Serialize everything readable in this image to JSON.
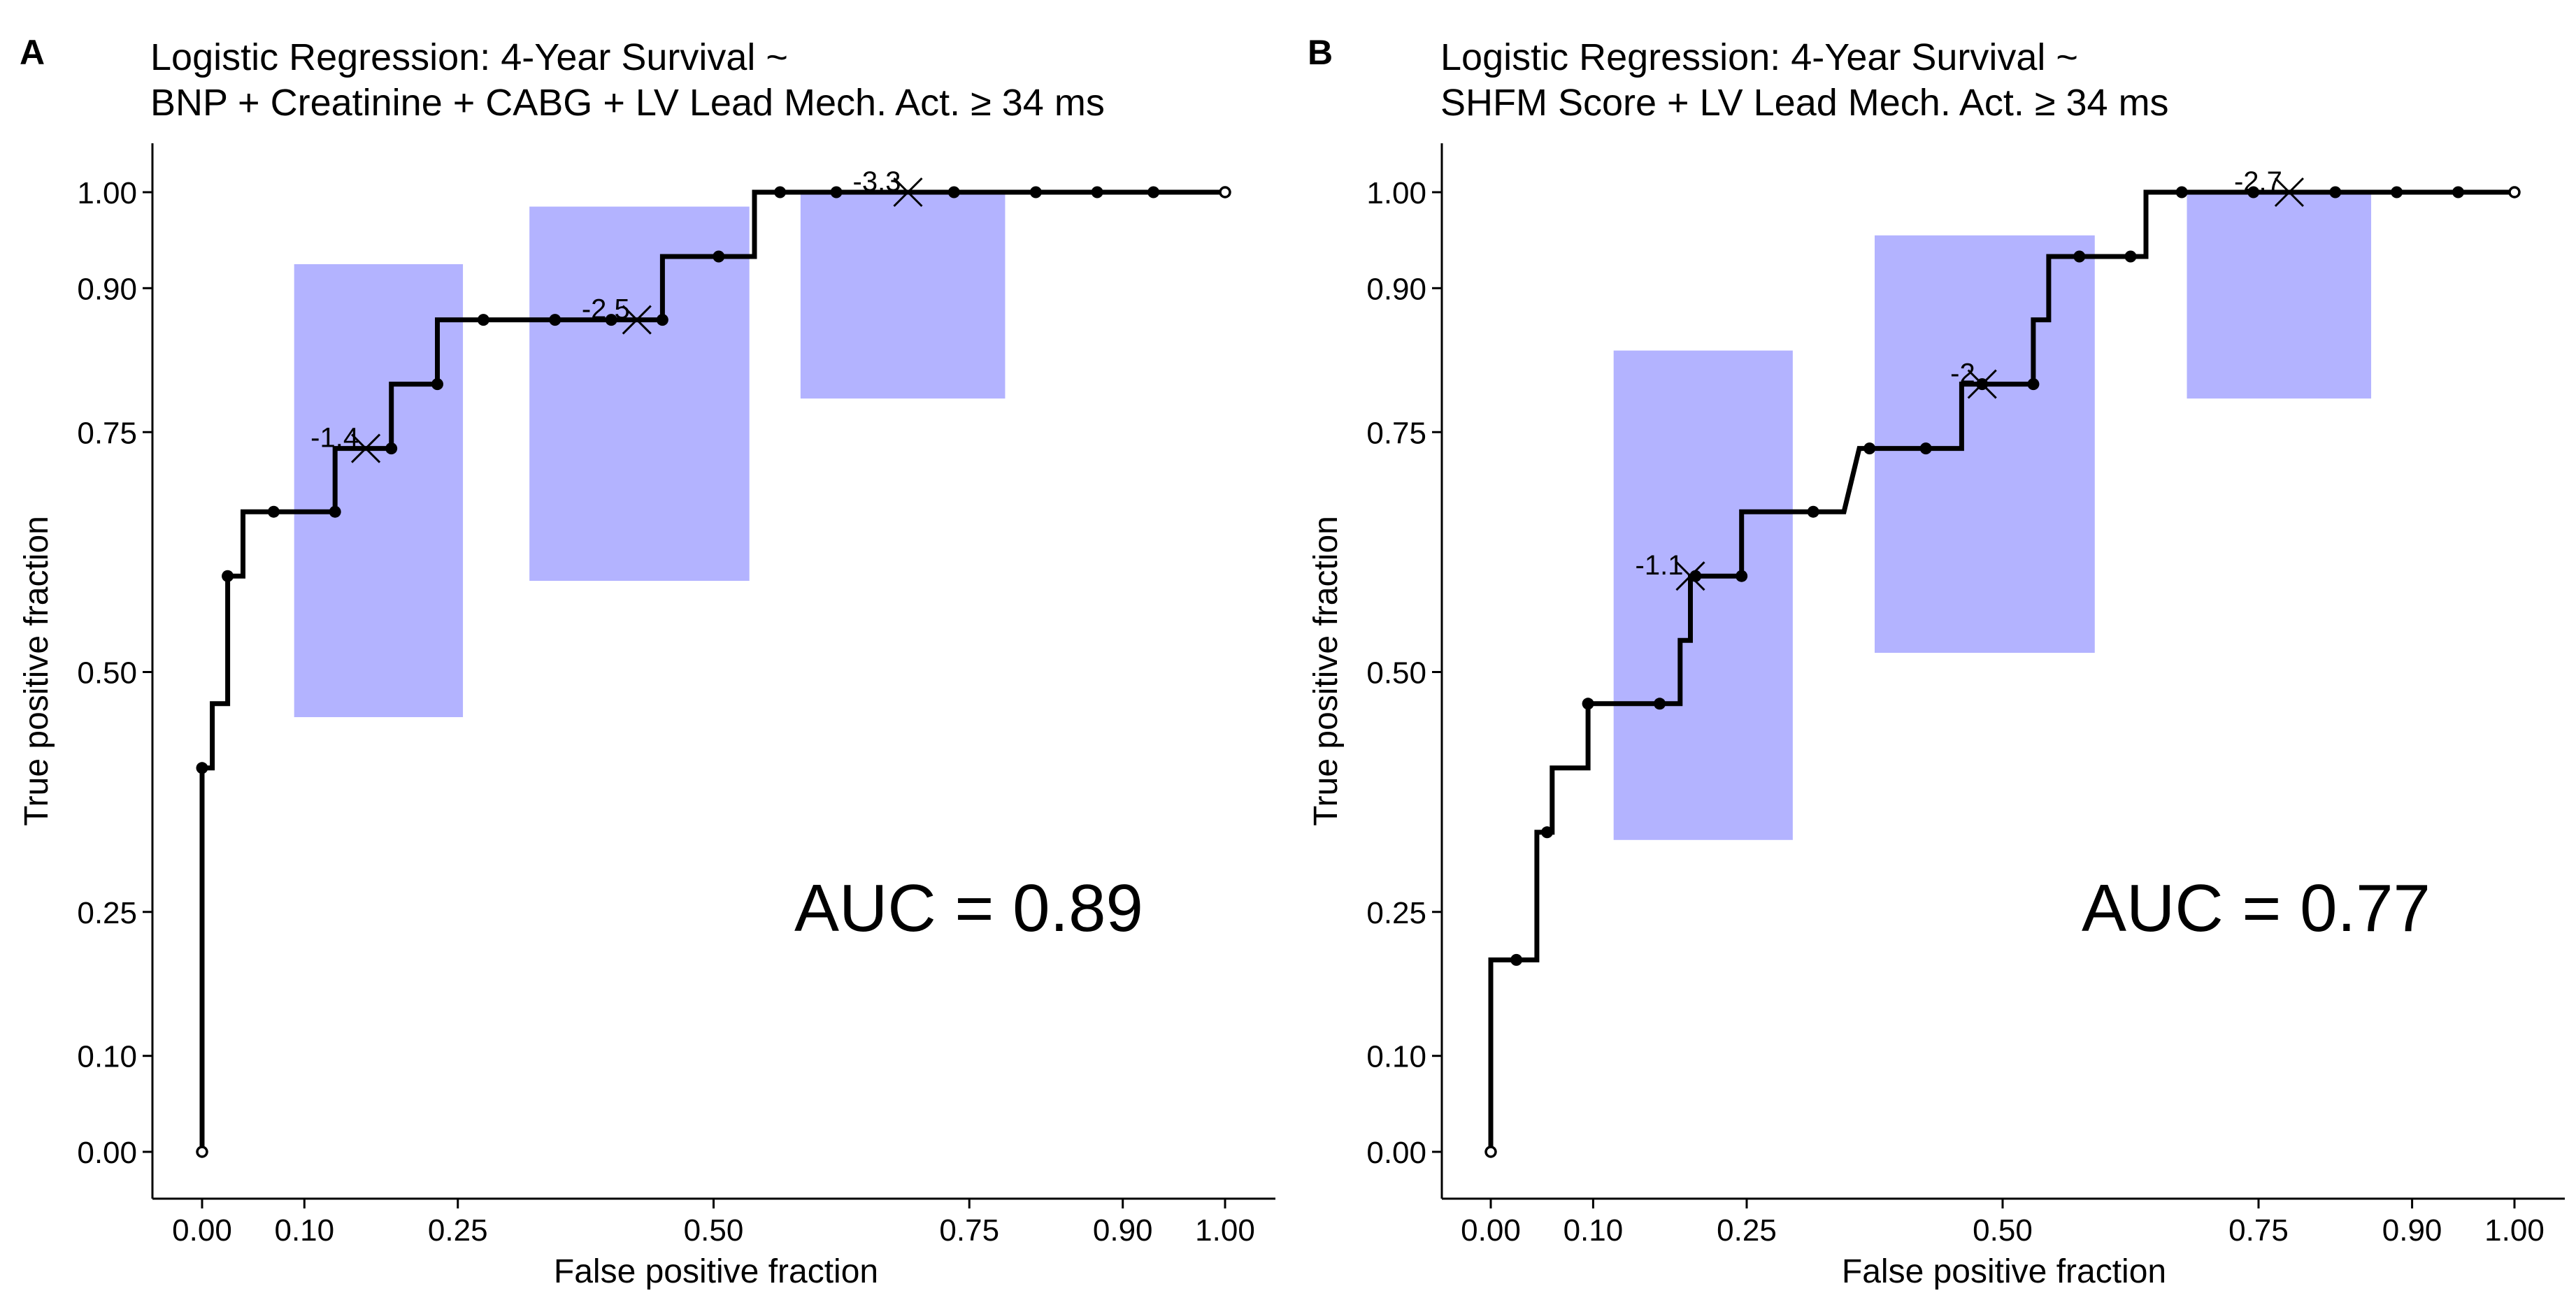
{
  "chart_data": [
    {
      "panel_label": "A",
      "type": "line",
      "title_line1": "Logistic Regression: 4-Year Survival ~",
      "title_line2": "BNP + Creatinine + CABG + LV Lead Mech. Act. ≥ 34 ms",
      "xlabel": "False positive fraction",
      "ylabel": "True positive fraction",
      "xlim": [
        0,
        1
      ],
      "ylim": [
        0,
        1
      ],
      "x_ticks": [
        0.0,
        0.1,
        0.25,
        0.5,
        0.75,
        0.9,
        1.0
      ],
      "x_tick_labels": [
        "0.00",
        "0.10",
        "0.25",
        "0.50",
        "0.75",
        "0.90",
        "1.00"
      ],
      "y_ticks": [
        0.0,
        0.1,
        0.25,
        0.5,
        0.75,
        0.9,
        1.0
      ],
      "y_tick_labels": [
        "0.00",
        "0.10",
        "0.25",
        "0.50",
        "0.75",
        "0.90",
        "1.00"
      ],
      "auc_text": "AUC = 0.89",
      "roc_step_path": [
        [
          0,
          0
        ],
        [
          0,
          0.4
        ],
        [
          0.01,
          0.4
        ],
        [
          0.01,
          0.467
        ],
        [
          0.025,
          0.467
        ],
        [
          0.025,
          0.6
        ],
        [
          0.04,
          0.6
        ],
        [
          0.04,
          0.667
        ],
        [
          0.13,
          0.667
        ],
        [
          0.13,
          0.733
        ],
        [
          0.185,
          0.733
        ],
        [
          0.185,
          0.8
        ],
        [
          0.23,
          0.8
        ],
        [
          0.23,
          0.867
        ],
        [
          0.45,
          0.867
        ],
        [
          0.45,
          0.933
        ],
        [
          0.54,
          0.933
        ],
        [
          0.54,
          1.0
        ],
        [
          1.0,
          1.0
        ]
      ],
      "points": [
        [
          0,
          0.4
        ],
        [
          0.025,
          0.6
        ],
        [
          0.07,
          0.667
        ],
        [
          0.13,
          0.667
        ],
        [
          0.185,
          0.733
        ],
        [
          0.23,
          0.8
        ],
        [
          0.275,
          0.867
        ],
        [
          0.345,
          0.867
        ],
        [
          0.4,
          0.867
        ],
        [
          0.45,
          0.867
        ],
        [
          0.505,
          0.933
        ],
        [
          0.565,
          1.0
        ],
        [
          0.62,
          1.0
        ],
        [
          0.735,
          1.0
        ],
        [
          0.815,
          1.0
        ],
        [
          0.875,
          1.0
        ],
        [
          0.93,
          1.0
        ]
      ],
      "endpoints": [
        [
          0,
          0
        ],
        [
          1,
          1
        ]
      ],
      "cutoffs": [
        {
          "label": "-1.4",
          "x": 0.16,
          "y": 0.733
        },
        {
          "label": "-2.5",
          "x": 0.425,
          "y": 0.867
        },
        {
          "label": "-3.3",
          "x": 0.69,
          "y": 1.0
        }
      ],
      "ci_boxes": [
        {
          "x": [
            0.09,
            0.255
          ],
          "y": [
            0.453,
            0.925
          ]
        },
        {
          "x": [
            0.32,
            0.535
          ],
          "y": [
            0.595,
            0.985
          ]
        },
        {
          "x": [
            0.585,
            0.785
          ],
          "y": [
            0.785,
            1.0
          ]
        }
      ],
      "box_color": "#b3b3ff"
    },
    {
      "panel_label": "B",
      "type": "line",
      "title_line1": "Logistic Regression: 4-Year Survival ~",
      "title_line2": "SHFM Score + LV Lead Mech. Act. ≥ 34 ms",
      "xlabel": "False positive fraction",
      "ylabel": "True positive fraction",
      "xlim": [
        0,
        1
      ],
      "ylim": [
        0,
        1
      ],
      "x_ticks": [
        0.0,
        0.1,
        0.25,
        0.5,
        0.75,
        0.9,
        1.0
      ],
      "x_tick_labels": [
        "0.00",
        "0.10",
        "0.25",
        "0.50",
        "0.75",
        "0.90",
        "1.00"
      ],
      "y_ticks": [
        0.0,
        0.1,
        0.25,
        0.5,
        0.75,
        0.9,
        1.0
      ],
      "y_tick_labels": [
        "0.00",
        "0.10",
        "0.25",
        "0.50",
        "0.75",
        "0.90",
        "1.00"
      ],
      "auc_text": "AUC = 0.77",
      "roc_step_path": [
        [
          0,
          0
        ],
        [
          0,
          0.2
        ],
        [
          0.025,
          0.2
        ],
        [
          0.045,
          0.2
        ],
        [
          0.045,
          0.333
        ],
        [
          0.06,
          0.333
        ],
        [
          0.06,
          0.4
        ],
        [
          0.095,
          0.4
        ],
        [
          0.095,
          0.467
        ],
        [
          0.165,
          0.467
        ],
        [
          0.185,
          0.467
        ],
        [
          0.185,
          0.533
        ],
        [
          0.195,
          0.533
        ],
        [
          0.195,
          0.6
        ],
        [
          0.245,
          0.6
        ],
        [
          0.245,
          0.667
        ],
        [
          0.315,
          0.667
        ],
        [
          0.345,
          0.667
        ],
        [
          0.36,
          0.733
        ],
        [
          0.37,
          0.733
        ],
        [
          0.46,
          0.733
        ],
        [
          0.46,
          0.8
        ],
        [
          0.53,
          0.8
        ],
        [
          0.53,
          0.867
        ],
        [
          0.545,
          0.867
        ],
        [
          0.545,
          0.933
        ],
        [
          0.575,
          0.933
        ],
        [
          0.64,
          0.933
        ],
        [
          0.64,
          1.0
        ],
        [
          1.0,
          1.0
        ]
      ],
      "points": [
        [
          0.025,
          0.2
        ],
        [
          0.055,
          0.333
        ],
        [
          0.095,
          0.467
        ],
        [
          0.165,
          0.467
        ],
        [
          0.2,
          0.6
        ],
        [
          0.245,
          0.6
        ],
        [
          0.315,
          0.667
        ],
        [
          0.37,
          0.733
        ],
        [
          0.425,
          0.733
        ],
        [
          0.48,
          0.8
        ],
        [
          0.53,
          0.8
        ],
        [
          0.575,
          0.933
        ],
        [
          0.625,
          0.933
        ],
        [
          0.675,
          1.0
        ],
        [
          0.745,
          1.0
        ],
        [
          0.825,
          1.0
        ],
        [
          0.885,
          1.0
        ],
        [
          0.945,
          1.0
        ]
      ],
      "endpoints": [
        [
          0,
          0
        ],
        [
          1,
          1
        ]
      ],
      "cutoffs": [
        {
          "label": "-1.1",
          "x": 0.195,
          "y": 0.6
        },
        {
          "label": "-2",
          "x": 0.48,
          "y": 0.8
        },
        {
          "label": "-2.7",
          "x": 0.78,
          "y": 1.0
        }
      ],
      "ci_boxes": [
        {
          "x": [
            0.12,
            0.295
          ],
          "y": [
            0.325,
            0.835
          ]
        },
        {
          "x": [
            0.375,
            0.59
          ],
          "y": [
            0.52,
            0.955
          ]
        },
        {
          "x": [
            0.68,
            0.86
          ],
          "y": [
            0.785,
            1.0
          ]
        }
      ],
      "box_color": "#b3b3ff"
    }
  ]
}
